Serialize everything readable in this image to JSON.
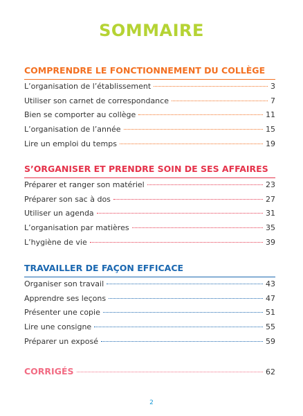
{
  "header": {
    "title": "SOMMAIRE"
  },
  "sections": [
    {
      "title": "COMPRENDRE LE FONCTIONNEMENT DU COLLÈGE",
      "color": "#f37021",
      "entries": [
        {
          "label": "L’organisation de l’établissement",
          "page": 3
        },
        {
          "label": "Utiliser son carnet de correspondance",
          "page": 7
        },
        {
          "label": "Bien se comporter au collège",
          "page": 11
        },
        {
          "label": "L’organisation de l’année",
          "page": 15
        },
        {
          "label": "Lire un emploi du temps",
          "page": 19
        }
      ]
    },
    {
      "title": "S’ORGANISER ET PRENDRE SOIN DE SES AFFAIRES",
      "color": "#e5334b",
      "entries": [
        {
          "label": "Préparer et ranger son matériel",
          "page": 23
        },
        {
          "label": "Préparer son sac à dos",
          "page": 27
        },
        {
          "label": "Utiliser un agenda",
          "page": 31
        },
        {
          "label": "L’organisation par matières",
          "page": 35
        },
        {
          "label": "L’hygiène de vie",
          "page": 39
        }
      ]
    },
    {
      "title": "TRAVAILLER DE FAÇON EFFICACE",
      "color": "#1a67b0",
      "entries": [
        {
          "label": "Organiser son travail",
          "page": 43
        },
        {
          "label": "Apprendre ses leçons",
          "page": 47
        },
        {
          "label": "Présenter une copie",
          "page": 51
        },
        {
          "label": "Lire une consigne",
          "page": 55
        },
        {
          "label": "Préparer un exposé",
          "page": 59
        }
      ]
    }
  ],
  "corriges": {
    "title": "CORRIGÉS",
    "page": 62,
    "color": "#f26b83"
  },
  "footer": {
    "page_number": "2"
  }
}
